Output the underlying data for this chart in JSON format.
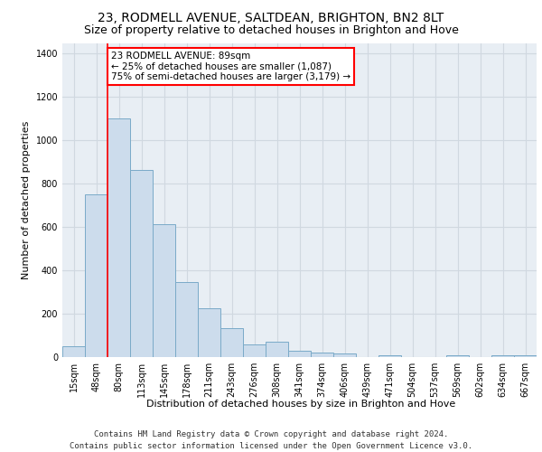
{
  "title1": "23, RODMELL AVENUE, SALTDEAN, BRIGHTON, BN2 8LT",
  "title2": "Size of property relative to detached houses in Brighton and Hove",
  "xlabel": "Distribution of detached houses by size in Brighton and Hove",
  "ylabel": "Number of detached properties",
  "footer1": "Contains HM Land Registry data © Crown copyright and database right 2024.",
  "footer2": "Contains public sector information licensed under the Open Government Licence v3.0.",
  "annotation_line1": "23 RODMELL AVENUE: 89sqm",
  "annotation_line2": "← 25% of detached houses are smaller (1,087)",
  "annotation_line3": "75% of semi-detached houses are larger (3,179) →",
  "bar_color": "#ccdcec",
  "bar_edge_color": "#7aaac8",
  "categories": [
    "15sqm",
    "48sqm",
    "80sqm",
    "113sqm",
    "145sqm",
    "178sqm",
    "211sqm",
    "243sqm",
    "276sqm",
    "308sqm",
    "341sqm",
    "374sqm",
    "406sqm",
    "439sqm",
    "471sqm",
    "504sqm",
    "537sqm",
    "569sqm",
    "602sqm",
    "634sqm",
    "667sqm"
  ],
  "bar_heights": [
    50,
    750,
    1100,
    865,
    615,
    345,
    225,
    135,
    60,
    70,
    30,
    20,
    15,
    0,
    10,
    0,
    0,
    10,
    0,
    10,
    10
  ],
  "ylim": [
    0,
    1450
  ],
  "yticks": [
    0,
    200,
    400,
    600,
    800,
    1000,
    1200,
    1400
  ],
  "ax_facecolor": "#e8eef4",
  "grid_color": "#d0d8e0",
  "title1_fontsize": 10,
  "title2_fontsize": 9,
  "ylabel_fontsize": 8,
  "xlabel_fontsize": 8,
  "tick_fontsize": 7,
  "footer_fontsize": 6.5
}
